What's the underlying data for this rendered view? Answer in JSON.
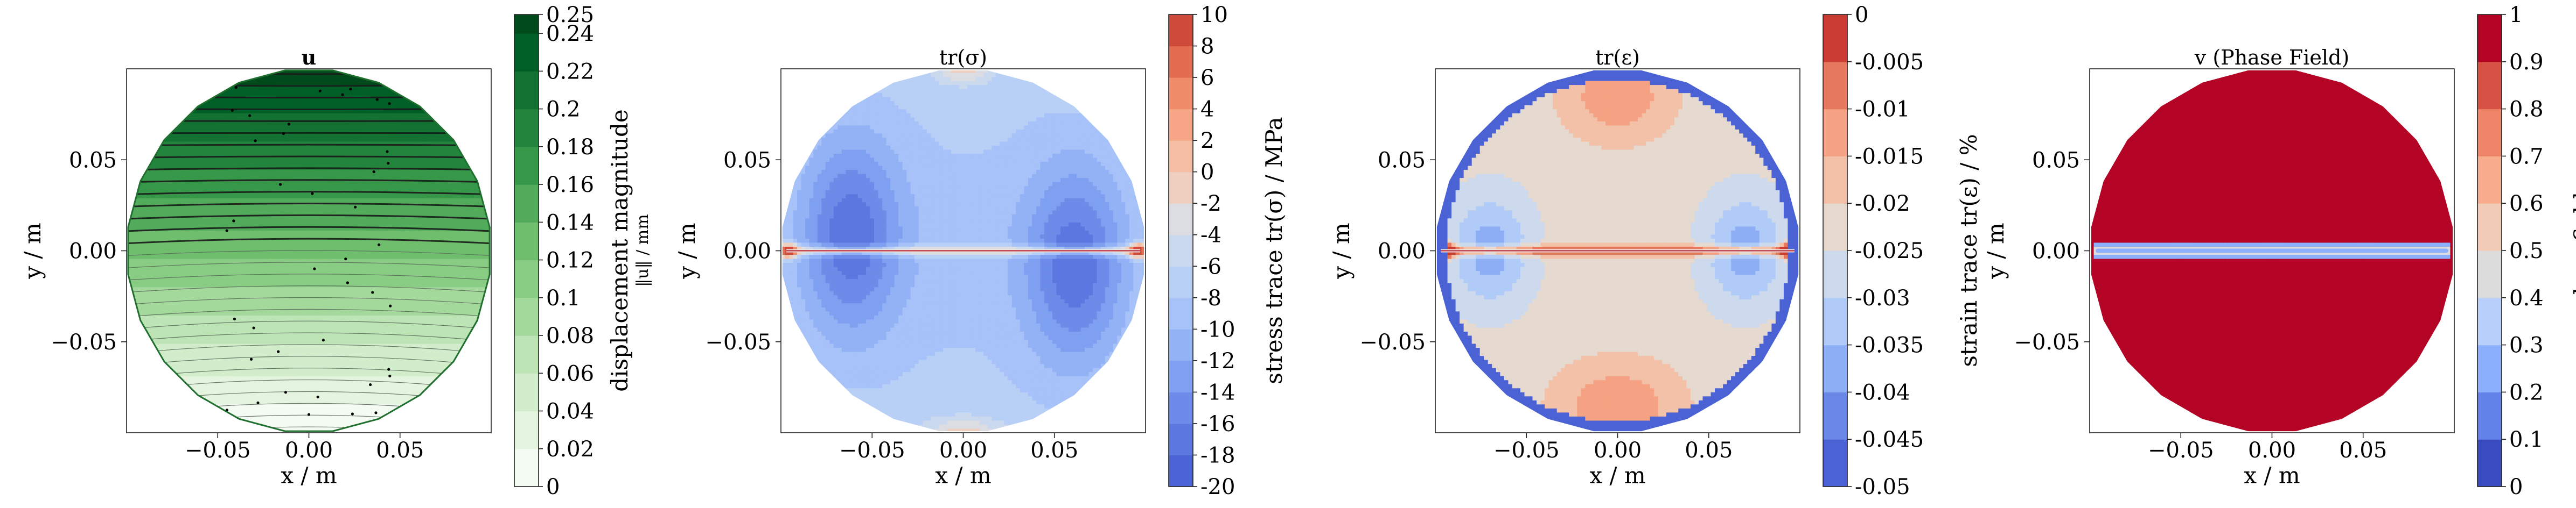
{
  "chart_data": [
    {
      "type": "heatmap",
      "title": "u",
      "xlabel": "x / m",
      "ylabel": "y / m",
      "xlim": [
        -0.1,
        0.1
      ],
      "ylim": [
        -0.1,
        0.1
      ],
      "xticks": [
        "−0.05",
        "0.00",
        "0.05"
      ],
      "yticks": [
        "0.05",
        "0.00",
        "−0.05"
      ],
      "tick_values": [
        -0.05,
        0.0,
        0.05
      ],
      "grid": false,
      "colorbar": {
        "label": "displacement magnitude",
        "sublabel": "‖u‖ / mm",
        "ticks": [
          "0.25",
          "0.24",
          "0.22",
          "0.2",
          "0.18",
          "0.16",
          "0.14",
          "0.12",
          "0.1",
          "0.08",
          "0.06",
          "0.04",
          "0.02",
          "0"
        ],
        "tick_values": [
          0.25,
          0.24,
          0.22,
          0.2,
          0.18,
          0.16,
          0.14,
          0.12,
          0.1,
          0.08,
          0.06,
          0.04,
          0.02,
          0
        ],
        "range": [
          0,
          0.25
        ],
        "levels": [
          0,
          0.02,
          0.04,
          0.06,
          0.08,
          0.1,
          0.12,
          0.14,
          0.16,
          0.18,
          0.2,
          0.22,
          0.24,
          0.25
        ],
        "colors": [
          "#f4fbf2",
          "#e4f4df",
          "#d2edcb",
          "#bce4b5",
          "#a4d99c",
          "#89cc83",
          "#6ebe6d",
          "#52ab5b",
          "#37984a",
          "#23853d",
          "#137232",
          "#005f27",
          "#004a1c"
        ],
        "colormap": "Greens"
      },
      "field": {
        "pattern": "displacement",
        "streamlines": true
      }
    },
    {
      "type": "heatmap",
      "title": "tr(σ)",
      "xlabel": "x / m",
      "ylabel": "y / m",
      "xlim": [
        -0.1,
        0.1
      ],
      "ylim": [
        -0.1,
        0.1
      ],
      "xticks": [
        "−0.05",
        "0.00",
        "0.05"
      ],
      "yticks": [
        "0.05",
        "0.00",
        "−0.05"
      ],
      "tick_values": [
        -0.05,
        0.0,
        0.05
      ],
      "grid": false,
      "colorbar": {
        "label": "stress trace tr(σ) / MPa",
        "sublabel": "",
        "ticks": [
          "10",
          "8",
          "6",
          "4",
          "2",
          "0",
          "-2",
          "-4",
          "-6",
          "-8",
          "-10",
          "-12",
          "-14",
          "-16",
          "-18",
          "-20"
        ],
        "tick_values": [
          10,
          8,
          6,
          4,
          2,
          0,
          -2,
          -4,
          -6,
          -8,
          -10,
          -12,
          -14,
          -16,
          -18,
          -20
        ],
        "range": [
          -20,
          10
        ],
        "levels": [
          -20,
          -18,
          -16,
          -14,
          -12,
          -10,
          -8,
          -6,
          -4,
          -2,
          0,
          2,
          4,
          6,
          8,
          10
        ],
        "colors": [
          "#4b63d5",
          "#5b78e0",
          "#6d8ce9",
          "#7fa0f1",
          "#93b2f6",
          "#a6c2f8",
          "#b9d0f6",
          "#cbd9ef",
          "#dcdde2",
          "#eecfc0",
          "#f5bda2",
          "#f6a686",
          "#f08b6a",
          "#e26d51",
          "#cf4a3a"
        ],
        "colormap": "coolwarm"
      },
      "field": {
        "pattern": "stress",
        "streamlines": false
      }
    },
    {
      "type": "heatmap",
      "title": "tr(ε)",
      "xlabel": "x / m",
      "ylabel": "y / m",
      "xlim": [
        -0.1,
        0.1
      ],
      "ylim": [
        -0.1,
        0.1
      ],
      "xticks": [
        "−0.05",
        "0.00",
        "0.05"
      ],
      "yticks": [
        "0.05",
        "0.00",
        "−0.05"
      ],
      "tick_values": [
        -0.05,
        0.0,
        0.05
      ],
      "grid": false,
      "colorbar": {
        "label": "strain trace tr(ε) / %",
        "sublabel": "",
        "ticks": [
          "0",
          "-0.005",
          "-0.01",
          "-0.015",
          "-0.02",
          "-0.025",
          "-0.03",
          "-0.035",
          "-0.04",
          "-0.045",
          "-0.05"
        ],
        "tick_values": [
          0,
          -0.005,
          -0.01,
          -0.015,
          -0.02,
          -0.025,
          -0.03,
          -0.035,
          -0.04,
          -0.045,
          -0.05
        ],
        "range": [
          -0.05,
          0
        ],
        "levels": [
          -0.05,
          -0.045,
          -0.04,
          -0.035,
          -0.03,
          -0.025,
          -0.02,
          -0.015,
          -0.01,
          -0.005,
          0
        ],
        "colors": [
          "#4a62d4",
          "#6a88e8",
          "#8daef4",
          "#b1cbf8",
          "#cdd9ec",
          "#e6d9d0",
          "#f3c1a8",
          "#f4a283",
          "#e6795d",
          "#cb3d33"
        ],
        "colormap": "coolwarm"
      },
      "field": {
        "pattern": "strain",
        "streamlines": false
      }
    },
    {
      "type": "heatmap",
      "title": "v (Phase Field)",
      "xlabel": "x / m",
      "ylabel": "y / m",
      "xlim": [
        -0.1,
        0.1
      ],
      "ylim": [
        -0.1,
        0.1
      ],
      "xticks": [
        "−0.05",
        "0.00",
        "0.05"
      ],
      "yticks": [
        "0.05",
        "0.00",
        "−0.05"
      ],
      "tick_values": [
        -0.05,
        0.0,
        0.05
      ],
      "grid": false,
      "colorbar": {
        "label": "phasefield",
        "sublabel": "",
        "ticks": [
          "1",
          "0.9",
          "0.8",
          "0.7",
          "0.6",
          "0.5",
          "0.4",
          "0.3",
          "0.2",
          "0.1",
          "0"
        ],
        "tick_values": [
          1,
          0.9,
          0.8,
          0.7,
          0.6,
          0.5,
          0.4,
          0.3,
          0.2,
          0.1,
          0
        ],
        "range": [
          0,
          1
        ],
        "levels": [
          0,
          0.1,
          0.2,
          0.3,
          0.4,
          0.5,
          0.6,
          0.7,
          0.8,
          0.9,
          1
        ],
        "colors": [
          "#3b4cc0",
          "#6282ea",
          "#8db0fe",
          "#b7cff9",
          "#dddcdc",
          "#f2cbb7",
          "#f7ac8e",
          "#ee8468",
          "#d65244",
          "#b40426"
        ],
        "colormap": "coolwarm"
      },
      "field": {
        "pattern": "phase",
        "streamlines": false
      }
    }
  ]
}
